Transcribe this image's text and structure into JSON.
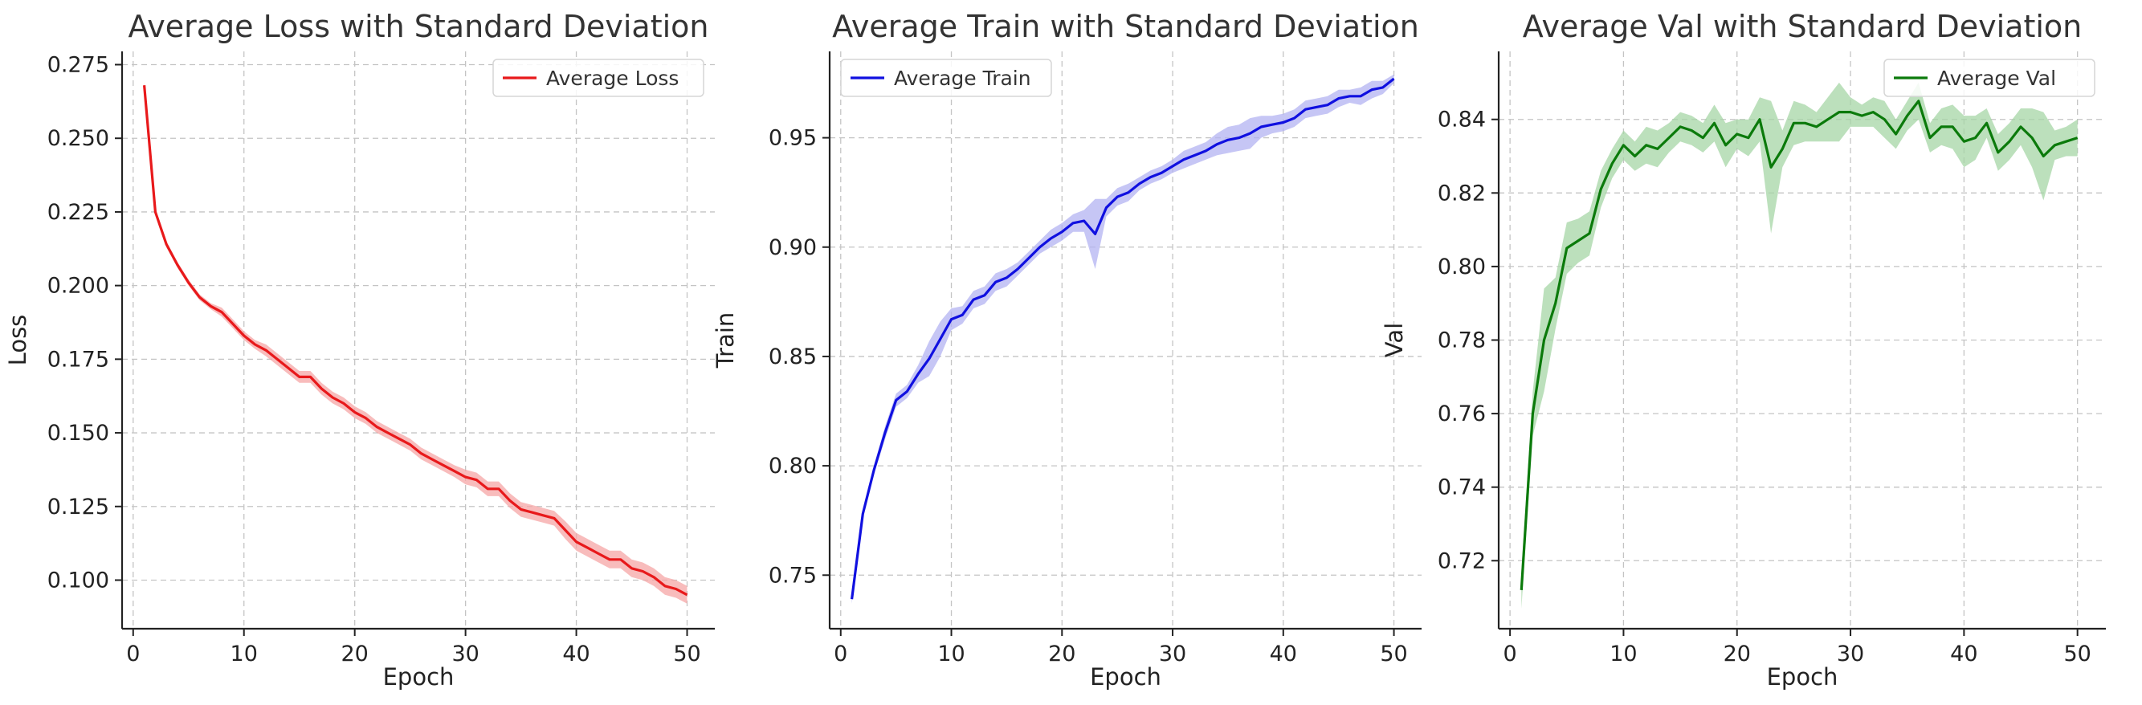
{
  "chart_data": [
    {
      "type": "line",
      "title": "Average Loss with Standard Deviation",
      "xlabel": "Epoch",
      "ylabel": "Loss",
      "xlim": [
        -1,
        52.5
      ],
      "ylim": [
        0.0835,
        0.2795
      ],
      "xticks": [
        0,
        10,
        20,
        30,
        40,
        50
      ],
      "yticks": [
        0.1,
        0.125,
        0.15,
        0.175,
        0.2,
        0.225,
        0.25,
        0.275
      ],
      "ytick_decimals": 3,
      "grid": true,
      "legend": "top-right",
      "color": "#e8191b",
      "band_color": "#f5a5a5",
      "x": [
        1,
        2,
        3,
        4,
        5,
        6,
        7,
        8,
        9,
        10,
        11,
        12,
        13,
        14,
        15,
        16,
        17,
        18,
        19,
        20,
        21,
        22,
        23,
        24,
        25,
        26,
        27,
        28,
        29,
        30,
        31,
        32,
        33,
        34,
        35,
        36,
        37,
        38,
        39,
        40,
        41,
        42,
        43,
        44,
        45,
        46,
        47,
        48,
        49,
        50
      ],
      "series": [
        {
          "name": "Average Loss",
          "values": [
            0.268,
            0.225,
            0.214,
            0.207,
            0.201,
            0.196,
            0.193,
            0.191,
            0.187,
            0.183,
            0.18,
            0.178,
            0.175,
            0.172,
            0.169,
            0.169,
            0.165,
            0.162,
            0.16,
            0.157,
            0.155,
            0.152,
            0.15,
            0.148,
            0.146,
            0.143,
            0.141,
            0.139,
            0.137,
            0.135,
            0.134,
            0.131,
            0.131,
            0.127,
            0.124,
            0.123,
            0.122,
            0.121,
            0.117,
            0.113,
            0.111,
            0.109,
            0.107,
            0.107,
            0.104,
            0.103,
            0.101,
            0.098,
            0.097,
            0.095
          ],
          "std": [
            0.001,
            0.001,
            0.001,
            0.001,
            0.001,
            0.001,
            0.001,
            0.0015,
            0.0015,
            0.0015,
            0.0015,
            0.002,
            0.002,
            0.002,
            0.002,
            0.002,
            0.002,
            0.002,
            0.002,
            0.002,
            0.002,
            0.002,
            0.002,
            0.002,
            0.002,
            0.002,
            0.002,
            0.002,
            0.002,
            0.0025,
            0.0025,
            0.0025,
            0.0025,
            0.0025,
            0.0025,
            0.0025,
            0.0025,
            0.0025,
            0.003,
            0.003,
            0.003,
            0.003,
            0.003,
            0.003,
            0.003,
            0.003,
            0.003,
            0.003,
            0.003,
            0.003
          ]
        }
      ]
    },
    {
      "type": "line",
      "title": "Average Train with Standard Deviation",
      "xlabel": "Epoch",
      "ylabel": "Train",
      "xlim": [
        -1,
        52.5
      ],
      "ylim": [
        0.7255,
        0.9895
      ],
      "xticks": [
        0,
        10,
        20,
        30,
        40,
        50
      ],
      "yticks": [
        0.75,
        0.8,
        0.85,
        0.9,
        0.95
      ],
      "ytick_decimals": 2,
      "grid": true,
      "legend": "top-left",
      "color": "#1010e0",
      "band_color": "#b3b3f2",
      "x": [
        1,
        2,
        3,
        4,
        5,
        6,
        7,
        8,
        9,
        10,
        11,
        12,
        13,
        14,
        15,
        16,
        17,
        18,
        19,
        20,
        21,
        22,
        23,
        24,
        25,
        26,
        27,
        28,
        29,
        30,
        31,
        32,
        33,
        34,
        35,
        36,
        37,
        38,
        39,
        40,
        41,
        42,
        43,
        44,
        45,
        46,
        47,
        48,
        49,
        50
      ],
      "series": [
        {
          "name": "Average Train",
          "values": [
            0.739,
            0.778,
            0.798,
            0.815,
            0.83,
            0.834,
            0.842,
            0.849,
            0.858,
            0.867,
            0.869,
            0.876,
            0.878,
            0.884,
            0.886,
            0.89,
            0.895,
            0.9,
            0.904,
            0.907,
            0.911,
            0.912,
            0.906,
            0.918,
            0.923,
            0.925,
            0.929,
            0.932,
            0.934,
            0.937,
            0.94,
            0.942,
            0.944,
            0.947,
            0.949,
            0.95,
            0.952,
            0.955,
            0.956,
            0.957,
            0.959,
            0.963,
            0.964,
            0.965,
            0.968,
            0.969,
            0.969,
            0.972,
            0.973,
            0.977
          ],
          "std": [
            0.002,
            0.002,
            0.002,
            0.003,
            0.003,
            0.003,
            0.004,
            0.008,
            0.008,
            0.005,
            0.004,
            0.004,
            0.004,
            0.004,
            0.004,
            0.003,
            0.003,
            0.003,
            0.004,
            0.004,
            0.004,
            0.005,
            0.016,
            0.004,
            0.004,
            0.004,
            0.003,
            0.003,
            0.003,
            0.003,
            0.004,
            0.004,
            0.004,
            0.005,
            0.006,
            0.006,
            0.007,
            0.005,
            0.004,
            0.004,
            0.004,
            0.004,
            0.004,
            0.004,
            0.004,
            0.003,
            0.004,
            0.004,
            0.003,
            0.002
          ]
        }
      ]
    },
    {
      "type": "line",
      "title": "Average Val with Standard Deviation",
      "xlabel": "Epoch",
      "ylabel": "Val",
      "xlim": [
        -1,
        52.5
      ],
      "ylim": [
        0.7015,
        0.8585
      ],
      "xticks": [
        0,
        10,
        20,
        30,
        40,
        50
      ],
      "yticks": [
        0.72,
        0.74,
        0.76,
        0.78,
        0.8,
        0.82,
        0.84
      ],
      "ytick_decimals": 2,
      "grid": true,
      "legend": "top-right",
      "color": "#0b7a0b",
      "band_color": "#a6d6a6",
      "x": [
        1,
        2,
        3,
        4,
        5,
        6,
        7,
        8,
        9,
        10,
        11,
        12,
        13,
        14,
        15,
        16,
        17,
        18,
        19,
        20,
        21,
        22,
        23,
        24,
        25,
        26,
        27,
        28,
        29,
        30,
        31,
        32,
        33,
        34,
        35,
        36,
        37,
        38,
        39,
        40,
        41,
        42,
        43,
        44,
        45,
        46,
        47,
        48,
        49,
        50
      ],
      "series": [
        {
          "name": "Average Val",
          "values": [
            0.712,
            0.76,
            0.78,
            0.79,
            0.805,
            0.807,
            0.809,
            0.821,
            0.828,
            0.833,
            0.83,
            0.833,
            0.832,
            0.835,
            0.838,
            0.837,
            0.835,
            0.839,
            0.833,
            0.836,
            0.835,
            0.84,
            0.827,
            0.832,
            0.839,
            0.839,
            0.838,
            0.84,
            0.842,
            0.842,
            0.841,
            0.842,
            0.84,
            0.836,
            0.841,
            0.845,
            0.835,
            0.838,
            0.838,
            0.834,
            0.835,
            0.839,
            0.831,
            0.834,
            0.838,
            0.835,
            0.83,
            0.833,
            0.834,
            0.835
          ],
          "std": [
            0.005,
            0.006,
            0.014,
            0.007,
            0.007,
            0.006,
            0.006,
            0.005,
            0.004,
            0.004,
            0.004,
            0.005,
            0.005,
            0.004,
            0.004,
            0.004,
            0.004,
            0.005,
            0.006,
            0.004,
            0.005,
            0.006,
            0.018,
            0.005,
            0.006,
            0.005,
            0.004,
            0.006,
            0.008,
            0.004,
            0.003,
            0.004,
            0.005,
            0.004,
            0.004,
            0.005,
            0.004,
            0.005,
            0.006,
            0.007,
            0.006,
            0.004,
            0.005,
            0.005,
            0.005,
            0.008,
            0.012,
            0.004,
            0.004,
            0.005
          ]
        }
      ]
    }
  ]
}
